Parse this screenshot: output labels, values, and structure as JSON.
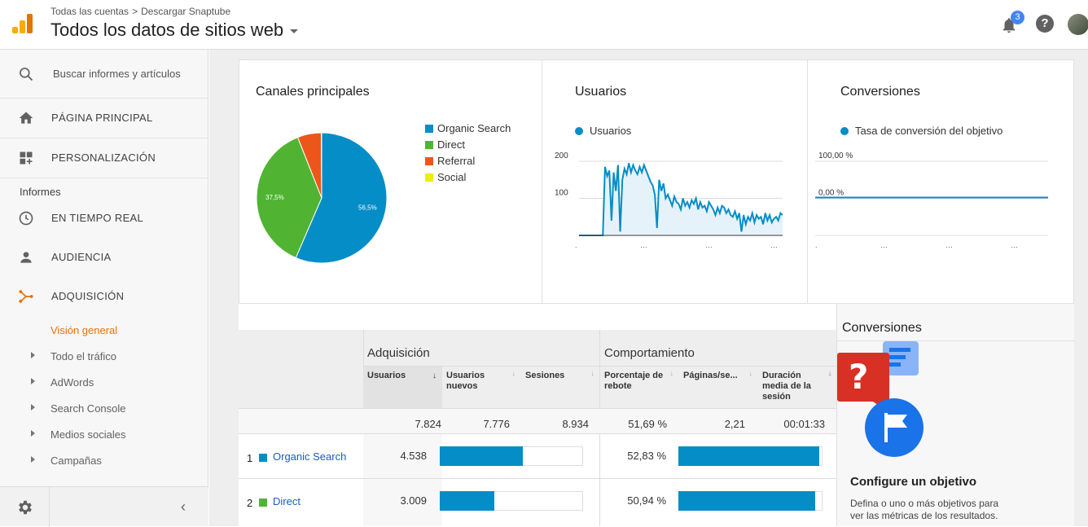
{
  "header": {
    "breadcrumb": [
      "Todas las cuentas",
      "Descargar Snaptube"
    ],
    "property": "Todos los datos de sitios web",
    "notifications": "3",
    "help": "?"
  },
  "sidebar": {
    "search_placeholder": "Buscar informes y artículos",
    "home": "PÁGINA PRINCIPAL",
    "custom": "PERSONALIZACIÓN",
    "reports_label": "Informes",
    "realtime": "EN TIEMPO REAL",
    "audience": "AUDIENCIA",
    "acquisition": "ADQUISICIÓN",
    "overview": "Visión general",
    "sub": [
      "Todo el tráfico",
      "AdWords",
      "Search Console",
      "Medios sociales",
      "Campañas"
    ],
    "collapse": "‹"
  },
  "cards": {
    "channels_title": "Canales principales",
    "users_title": "Usuarios",
    "conv_title": "Conversiones"
  },
  "chart_data": [
    {
      "type": "pie",
      "title": "Canales principales",
      "categories": [
        "Organic Search",
        "Direct",
        "Referral",
        "Social"
      ],
      "values": [
        56.5,
        37.5,
        5.9,
        0.1
      ],
      "labels": [
        "56,5%",
        "37,5%",
        "",
        ""
      ],
      "colors": [
        "#058dc7",
        "#50b432",
        "#ed561b",
        "#edef00"
      ]
    },
    {
      "type": "area",
      "title": "Usuarios",
      "series": [
        {
          "name": "Usuarios",
          "values": [
            0,
            0,
            0,
            0,
            0,
            0,
            0,
            0,
            0,
            0,
            0,
            0,
            185,
            160,
            175,
            40,
            170,
            120,
            190,
            10,
            150,
            180,
            165,
            195,
            170,
            190,
            175,
            165,
            185,
            170,
            190,
            175,
            160,
            145,
            135,
            110,
            20,
            150,
            120,
            140,
            100,
            110,
            95,
            80,
            105,
            90,
            85,
            70,
            100,
            80,
            90,
            75,
            95,
            85,
            100,
            70,
            90,
            75,
            80,
            65,
            90,
            80,
            70,
            55,
            75,
            60,
            80,
            75,
            60,
            70,
            55,
            50,
            65,
            45,
            60,
            10,
            55,
            30,
            50,
            40,
            60,
            35,
            55,
            45,
            50,
            30,
            60,
            40,
            55,
            35,
            45,
            50,
            40,
            60,
            55
          ]
        }
      ],
      "yticks": [
        "200",
        "100"
      ],
      "ylim": [
        0,
        200
      ]
    },
    {
      "type": "line",
      "title": "Conversiones",
      "series": [
        {
          "name": "Tasa de conversión del objetivo",
          "values": [
            0,
            0,
            0,
            0,
            0,
            0,
            0,
            0,
            0,
            0
          ]
        }
      ],
      "yticks": [
        "100,00 %",
        "0,00 %"
      ]
    }
  ],
  "table": {
    "group_acq": "Adquisición",
    "group_beh": "Comportamiento",
    "headers": [
      "Usuarios",
      "Usuarios nuevos",
      "Sesiones",
      "Porcentaje de rebote",
      "Páginas/se...",
      "Duración media de la sesión"
    ],
    "totals": [
      "7.824",
      "7.776",
      "8.934",
      "51,69 %",
      "2,21",
      "00:01:33"
    ],
    "rows": [
      {
        "rank": "1",
        "name": "Organic Search",
        "users": "4.538",
        "bounce": "52,83 %",
        "color": "#058dc7",
        "users_frac": 0.58,
        "bounce_frac": 0.98
      },
      {
        "rank": "2",
        "name": "Direct",
        "users": "3.009",
        "bounce": "50,94 %",
        "color": "#50b432",
        "users_frac": 0.38,
        "bounce_frac": 0.95
      }
    ]
  },
  "conv_panel": {
    "title": "Conversiones",
    "heading": "Configure un objetivo",
    "text1": "Defina o uno o más objetivos para",
    "text2": "ver las métricas de los resultados."
  }
}
